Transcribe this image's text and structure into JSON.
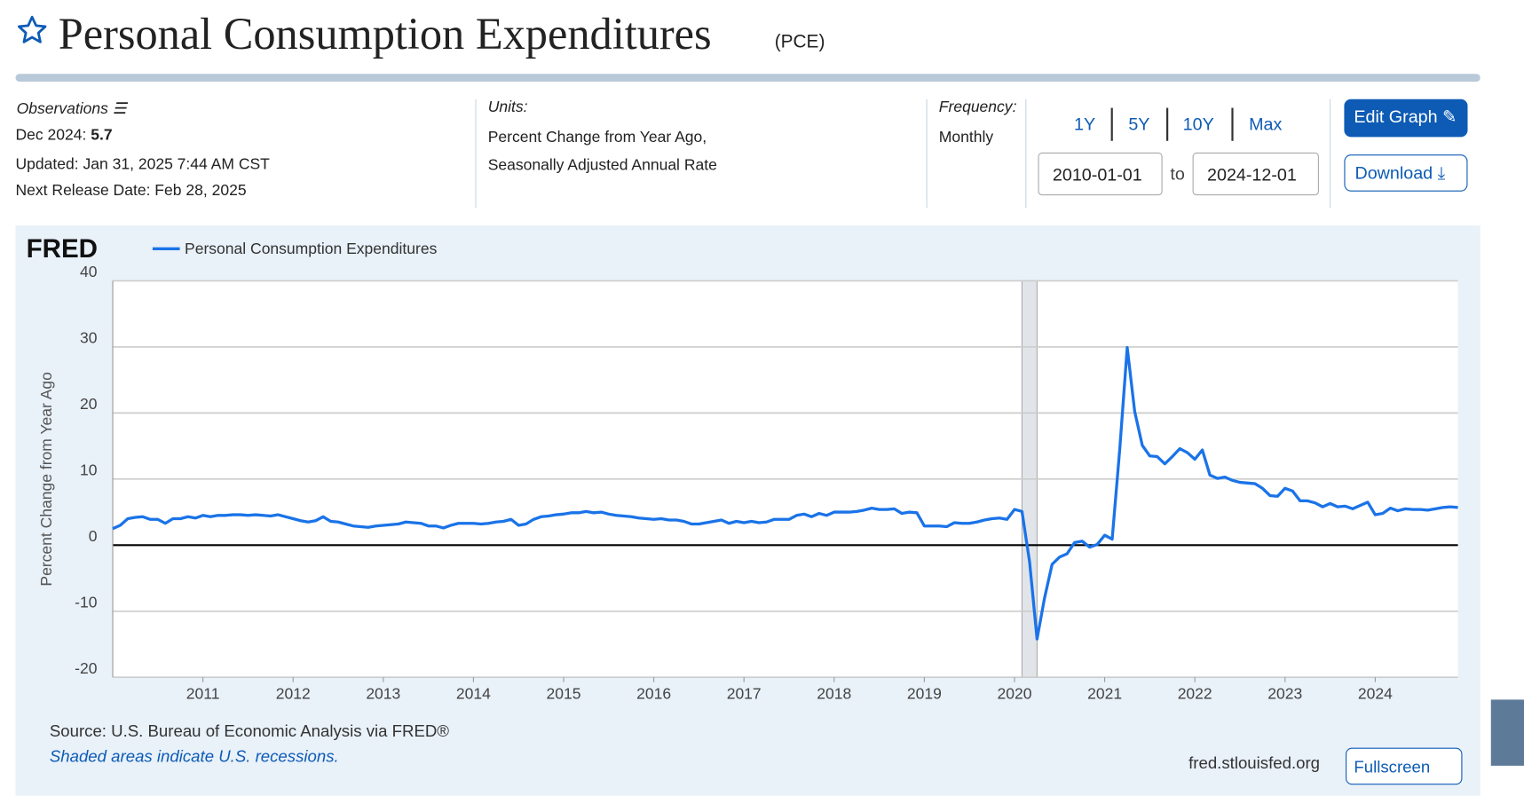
{
  "header": {
    "title": "Personal Consumption Expenditures",
    "code": "(PCE)",
    "observations": "Observations",
    "obs_date": "Dec 2024:",
    "obs_value": "5.7",
    "updated": "Updated: Jan 31, 2025 7:44 AM CST",
    "next_release": "Next Release Date: Feb 28, 2025",
    "units_label": "Units:",
    "units_line1": "Percent Change from Year Ago,",
    "units_line2": "Seasonally Adjusted Annual Rate",
    "frequency_label": "Frequency:",
    "frequency": "Monthly",
    "ranges": [
      "1Y",
      "5Y",
      "10Y",
      "Max"
    ],
    "date_from": "2010-01-01",
    "date_to_word": "to",
    "date_to": "2024-12-01",
    "edit": "Edit Graph",
    "download": "Download"
  },
  "chart_data": {
    "type": "line",
    "logo": "FRED",
    "ylabel": "Percent Change from Year Ago",
    "source": "Source: U.S. Bureau of Economic Analysis via FRED®",
    "note": "Shaded areas indicate U.S. recessions.",
    "site": "fred.stlouisfed.org",
    "fullscreen": "Fullscreen",
    "xlim": [
      2010,
      2024.917
    ],
    "xticks": [
      2011,
      2012,
      2013,
      2014,
      2015,
      2016,
      2017,
      2018,
      2019,
      2020,
      2021,
      2022,
      2023,
      2024
    ],
    "ylim": [
      -20,
      40
    ],
    "yticks": [
      -20,
      -10,
      0,
      10,
      20,
      30,
      40
    ],
    "grid": true,
    "recessions": [
      [
        2020.083,
        2020.25
      ]
    ],
    "x": [
      2010,
      2010.083,
      2010.167,
      2010.25,
      2010.333,
      2010.417,
      2010.5,
      2010.583,
      2010.667,
      2010.75,
      2010.833,
      2010.917,
      2011,
      2011.083,
      2011.167,
      2011.25,
      2011.333,
      2011.417,
      2011.5,
      2011.583,
      2011.667,
      2011.75,
      2011.833,
      2011.917,
      2012,
      2012.083,
      2012.167,
      2012.25,
      2012.333,
      2012.417,
      2012.5,
      2012.583,
      2012.667,
      2012.75,
      2012.833,
      2012.917,
      2013,
      2013.083,
      2013.167,
      2013.25,
      2013.333,
      2013.417,
      2013.5,
      2013.583,
      2013.667,
      2013.75,
      2013.833,
      2013.917,
      2014,
      2014.083,
      2014.167,
      2014.25,
      2014.333,
      2014.417,
      2014.5,
      2014.583,
      2014.667,
      2014.75,
      2014.833,
      2014.917,
      2015,
      2015.083,
      2015.167,
      2015.25,
      2015.333,
      2015.417,
      2015.5,
      2015.583,
      2015.667,
      2015.75,
      2015.833,
      2015.917,
      2016,
      2016.083,
      2016.167,
      2016.25,
      2016.333,
      2016.417,
      2016.5,
      2016.583,
      2016.667,
      2016.75,
      2016.833,
      2016.917,
      2017,
      2017.083,
      2017.167,
      2017.25,
      2017.333,
      2017.417,
      2017.5,
      2017.583,
      2017.667,
      2017.75,
      2017.833,
      2017.917,
      2018,
      2018.083,
      2018.167,
      2018.25,
      2018.333,
      2018.417,
      2018.5,
      2018.583,
      2018.667,
      2018.75,
      2018.833,
      2018.917,
      2019,
      2019.083,
      2019.167,
      2019.25,
      2019.333,
      2019.417,
      2019.5,
      2019.583,
      2019.667,
      2019.75,
      2019.833,
      2019.917,
      2020,
      2020.083,
      2020.167,
      2020.25,
      2020.333,
      2020.417,
      2020.5,
      2020.583,
      2020.667,
      2020.75,
      2020.833,
      2020.917,
      2021,
      2021.083,
      2021.167,
      2021.25,
      2021.333,
      2021.417,
      2021.5,
      2021.583,
      2021.667,
      2021.75,
      2021.833,
      2021.917,
      2022,
      2022.083,
      2022.167,
      2022.25,
      2022.333,
      2022.417,
      2022.5,
      2022.583,
      2022.667,
      2022.75,
      2022.833,
      2022.917,
      2023,
      2023.083,
      2023.167,
      2023.25,
      2023.333,
      2023.417,
      2023.5,
      2023.583,
      2023.667,
      2023.75,
      2023.833,
      2023.917,
      2024,
      2024.083,
      2024.167,
      2024.25,
      2024.333,
      2024.417,
      2024.5,
      2024.583,
      2024.667,
      2024.75,
      2024.833,
      2024.917
    ],
    "series": [
      {
        "name": "Personal Consumption Expenditures",
        "color": "#1a73e8",
        "values": [
          2.5,
          3.0,
          4.0,
          4.2,
          4.3,
          3.9,
          3.9,
          3.3,
          4.0,
          4.0,
          4.3,
          4.1,
          4.5,
          4.3,
          4.5,
          4.5,
          4.6,
          4.6,
          4.5,
          4.6,
          4.5,
          4.4,
          4.6,
          4.3,
          4.0,
          3.7,
          3.5,
          3.7,
          4.3,
          3.6,
          3.5,
          3.2,
          2.9,
          2.8,
          2.7,
          2.9,
          3.0,
          3.1,
          3.2,
          3.5,
          3.4,
          3.3,
          2.9,
          2.9,
          2.6,
          3.0,
          3.3,
          3.3,
          3.3,
          3.2,
          3.3,
          3.5,
          3.6,
          3.9,
          3.0,
          3.2,
          3.9,
          4.3,
          4.4,
          4.6,
          4.7,
          4.9,
          4.9,
          5.1,
          4.9,
          5.0,
          4.7,
          4.5,
          4.4,
          4.3,
          4.1,
          4.0,
          3.9,
          4.0,
          3.8,
          3.8,
          3.6,
          3.2,
          3.2,
          3.4,
          3.6,
          3.8,
          3.3,
          3.6,
          3.4,
          3.6,
          3.4,
          3.5,
          3.9,
          3.9,
          3.9,
          4.5,
          4.7,
          4.3,
          4.8,
          4.5,
          5.0,
          5.0,
          5.0,
          5.1,
          5.3,
          5.6,
          5.4,
          5.4,
          5.5,
          4.8,
          5.0,
          4.9,
          2.9,
          2.9,
          2.9,
          2.8,
          3.4,
          3.3,
          3.3,
          3.5,
          3.8,
          4.0,
          4.1,
          3.9,
          5.4,
          5.1,
          -2.5,
          -14.2,
          -8.0,
          -2.9,
          -1.8,
          -1.3,
          0.4,
          0.6,
          -0.3,
          0.1,
          1.5,
          0.9,
          14.5,
          29.9,
          20.2,
          15.1,
          13.5,
          13.4,
          12.3,
          13.4,
          14.6,
          14.0,
          13.0,
          14.4,
          10.6,
          10.1,
          10.3,
          9.8,
          9.5,
          9.4,
          9.3,
          8.6,
          7.5,
          7.4,
          8.6,
          8.2,
          6.7,
          6.7,
          6.4,
          5.8,
          6.3,
          5.8,
          5.9,
          5.5,
          6.0,
          6.5,
          4.6,
          4.8,
          5.6,
          5.2,
          5.5,
          5.4,
          5.4,
          5.3,
          5.5,
          5.7,
          5.8,
          5.7
        ]
      }
    ]
  }
}
